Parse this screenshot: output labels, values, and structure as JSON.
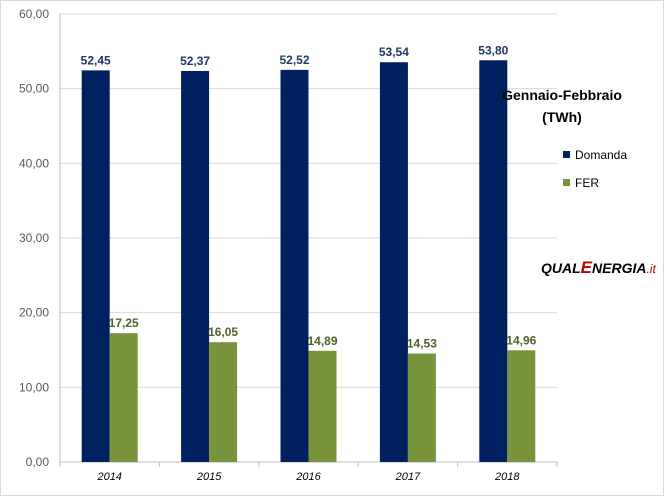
{
  "chart_data": {
    "type": "bar",
    "title": "Gennaio-Febbraio",
    "subtitle": "(TWh)",
    "categories": [
      "2014",
      "2015",
      "2016",
      "2017",
      "2018"
    ],
    "series": [
      {
        "name": "Domanda",
        "values": [
          52.45,
          52.37,
          52.52,
          53.54,
          53.8
        ],
        "labels": [
          "52,45",
          "52,37",
          "52,52",
          "53,54",
          "53,80"
        ],
        "color": "#002060"
      },
      {
        "name": "FER",
        "values": [
          17.25,
          16.05,
          14.89,
          14.53,
          14.96
        ],
        "labels": [
          "17,25",
          "16,05",
          "14,89",
          "14,53",
          "14,96"
        ],
        "color": "#77933c"
      }
    ],
    "ylim": [
      0,
      60
    ],
    "yticks": [
      "0,00",
      "10,00",
      "20,00",
      "30,00",
      "40,00",
      "50,00",
      "60,00"
    ],
    "grid": true,
    "legend_position": "right"
  },
  "watermark": {
    "part1": "QUAL",
    "part2": "E",
    "part3": "NERGIA",
    "part4": ".it"
  }
}
